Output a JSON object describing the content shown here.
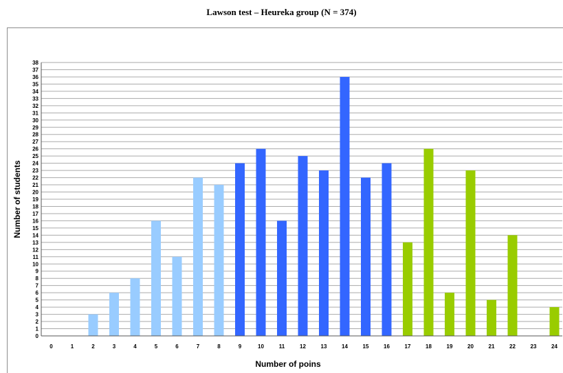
{
  "chart_data": {
    "type": "bar",
    "title": "Lawson test – Heureka group (N = 374)",
    "xlabel": "Number of poins",
    "ylabel": "Number of students",
    "ylim": [
      0,
      38
    ],
    "grid": true,
    "categories": [
      "0",
      "1",
      "2",
      "3",
      "4",
      "5",
      "6",
      "7",
      "8",
      "9",
      "10",
      "11",
      "12",
      "13",
      "14",
      "15",
      "16",
      "17",
      "18",
      "19",
      "20",
      "21",
      "22",
      "23",
      "24"
    ],
    "values": [
      0,
      0,
      3,
      6,
      8,
      16,
      11,
      22,
      21,
      24,
      26,
      16,
      25,
      23,
      36,
      22,
      24,
      13,
      26,
      6,
      23,
      5,
      14,
      0,
      4
    ],
    "bar_colors": [
      "#99ccff",
      "#99ccff",
      "#99ccff",
      "#99ccff",
      "#99ccff",
      "#99ccff",
      "#99ccff",
      "#99ccff",
      "#99ccff",
      "#3366ff",
      "#3366ff",
      "#3366ff",
      "#3366ff",
      "#3366ff",
      "#3366ff",
      "#3366ff",
      "#3366ff",
      "#99cc00",
      "#99cc00",
      "#99cc00",
      "#99cc00",
      "#99cc00",
      "#99cc00",
      "#99cc00",
      "#99cc00"
    ]
  }
}
